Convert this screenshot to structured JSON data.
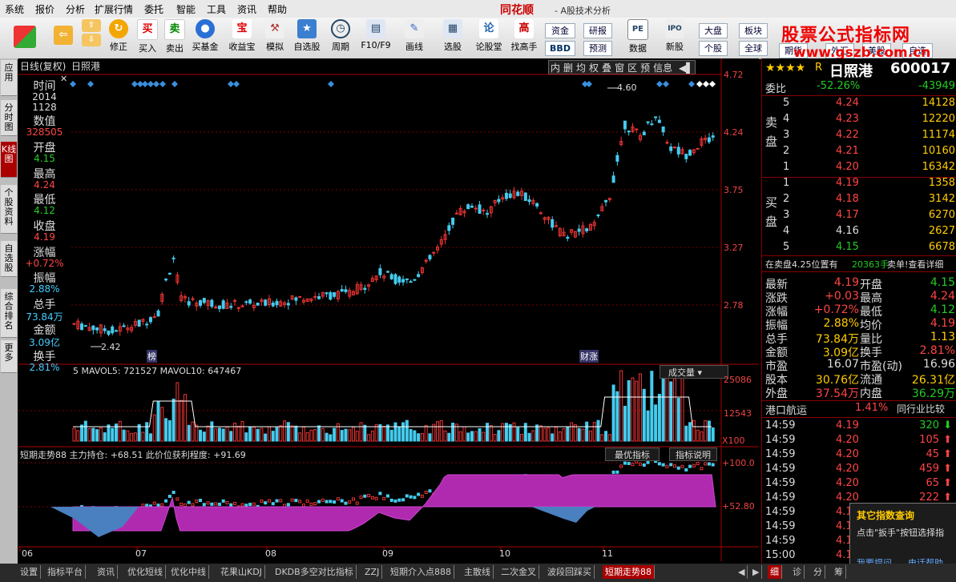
{
  "menu": {
    "items": [
      "系统",
      "报价",
      "分析",
      "扩展行情",
      "委托",
      "智能",
      "工具",
      "资讯",
      "帮助"
    ],
    "brand": "同花顺",
    "brand_sub": "- A股技术分析"
  },
  "watermark": {
    "line1": "股票公式指标网",
    "line2": "www.gszb.com.cn"
  },
  "toolbar": {
    "buttons": [
      "修正",
      "买入",
      "卖出",
      "买基金",
      "收益宝",
      "模拟",
      "自选股",
      "周期",
      "F10/F9",
      "画线",
      "选股",
      "论股堂",
      "找高手",
      "数据",
      "新股"
    ],
    "small_buttons": [
      "资金",
      "研报",
      "大盘",
      "板块",
      "BBD",
      "预测",
      "个股",
      "全球",
      "PE",
      "IPO"
    ],
    "edge_labels": [
      "期货",
      "外汇",
      "美股",
      "自选"
    ]
  },
  "left_tabs": [
    "应用",
    "分时图",
    "K线图",
    "个股资料",
    "自选股",
    "综合排名",
    "更多"
  ],
  "chart": {
    "header_left": "日线(复权)",
    "header_stock": "日照港",
    "header_buttons": [
      "内",
      "删",
      "均",
      "权",
      "叠",
      "窗",
      "区",
      "预",
      "信息"
    ],
    "price_axis": [
      "4.72",
      "4.24",
      "3.75",
      "3.27",
      "2.78"
    ],
    "max_label": "4.60",
    "min_label": "2.42",
    "tag1": "榜",
    "tag2": "财涨",
    "vol_header": "5  MAVOL5: 721527  MAVOL10: 647467",
    "vol_label": "成交量",
    "vol_axis": [
      "25086",
      "12543",
      "X100"
    ],
    "ind_header": "短期走势88  主力持仓: +68.51  此价位获利程度: +91.69",
    "ind_btn1": "最优指标",
    "ind_btn2": "指标说明",
    "ind_axis": [
      "+100.0",
      "+52.80"
    ],
    "dates": [
      "06",
      "07",
      "08",
      "09",
      "10",
      "11"
    ]
  },
  "infobox": {
    "time_label": "时间",
    "year": "2014",
    "date": "1128",
    "value_label": "数值",
    "value": "328505",
    "open_label": "开盘",
    "open": "4.15",
    "high_label": "最高",
    "high": "4.24",
    "low_label": "最低",
    "low": "4.12",
    "close_label": "收盘",
    "close": "4.19",
    "change_label": "涨幅",
    "change": "+0.72%",
    "amp_label": "振幅",
    "amp": "2.88%",
    "vol_label": "总手",
    "vol": "73.84万",
    "amount_label": "金额",
    "amount": "3.09亿",
    "turnover_label": "换手",
    "turnover": "2.81%"
  },
  "quote": {
    "stars": "★★★★",
    "r": "R",
    "name": "日照港",
    "code": "600017",
    "wb_label": "委比",
    "wb": "-52.26%",
    "wc": "-43949",
    "sell_label": "卖盘",
    "buy_label": "买盘",
    "sell": [
      {
        "n": "5",
        "p": "4.24",
        "v": "14128"
      },
      {
        "n": "4",
        "p": "4.23",
        "v": "12220"
      },
      {
        "n": "3",
        "p": "4.22",
        "v": "11174"
      },
      {
        "n": "2",
        "p": "4.21",
        "v": "10160"
      },
      {
        "n": "1",
        "p": "4.20",
        "v": "16342"
      }
    ],
    "buy": [
      {
        "n": "1",
        "p": "4.19",
        "v": "1358"
      },
      {
        "n": "2",
        "p": "4.18",
        "v": "3142"
      },
      {
        "n": "3",
        "p": "4.17",
        "v": "6270"
      },
      {
        "n": "4",
        "p": "4.16",
        "v": "2627"
      },
      {
        "n": "5",
        "p": "4.15",
        "v": "6678"
      }
    ],
    "notice": "在卖盘4.25位置有",
    "notice_vol": "20363手",
    "notice_end": "卖单!查看详细",
    "stats": [
      {
        "l1": "最新",
        "v1": "4.19",
        "l2": "开盘",
        "v2": "4.15"
      },
      {
        "l1": "涨跌",
        "v1": "+0.03",
        "l2": "最高",
        "v2": "4.24"
      },
      {
        "l1": "涨幅",
        "v1": "+0.72%",
        "l2": "最低",
        "v2": "4.12"
      },
      {
        "l1": "振幅",
        "v1": "2.88%",
        "l2": "均价",
        "v2": "4.19"
      },
      {
        "l1": "总手",
        "v1": "73.84万",
        "l2": "量比",
        "v2": "1.13"
      },
      {
        "l1": "金额",
        "v1": "3.09亿",
        "l2": "换手",
        "v2": "2.81%"
      },
      {
        "l1": "市盈",
        "v1": "16.07",
        "l2": "市盈(动)",
        "v2": "16.96"
      },
      {
        "l1": "股本",
        "v1": "30.76亿",
        "l2": "流通",
        "v2": "26.31亿"
      },
      {
        "l1": "外盘",
        "v1": "37.54万",
        "l2": "内盘",
        "v2": "36.29万"
      }
    ],
    "sector": "港口航运",
    "sector_pct": "1.41%",
    "sector_btn": "同行业比较",
    "ticks": [
      {
        "t": "14:59",
        "p": "4.19",
        "v": "320"
      },
      {
        "t": "14:59",
        "p": "4.20",
        "v": "105"
      },
      {
        "t": "14:59",
        "p": "4.20",
        "v": "45"
      },
      {
        "t": "14:59",
        "p": "4.20",
        "v": "459"
      },
      {
        "t": "14:59",
        "p": "4.20",
        "v": "65"
      },
      {
        "t": "14:59",
        "p": "4.20",
        "v": "222"
      },
      {
        "t": "14:59",
        "p": "4.1"
      },
      {
        "t": "14:59",
        "p": "4.1"
      },
      {
        "t": "14:59",
        "p": "4.1"
      },
      {
        "t": "15:00",
        "p": "4.1"
      }
    ]
  },
  "popup": {
    "title": "其它指数查询",
    "body": "点击\"扳手\"按钮选择指",
    "link1": "我要提问",
    "link2": "电话帮助"
  },
  "bottom_tabs": [
    "设置",
    "指标平台",
    "资讯",
    "优化短线",
    "优化中线",
    "花果山KDJ",
    "DKDB多空对比指标",
    "ZZJ",
    "短期介入点888",
    "主散线",
    "二次金叉",
    "波段回踩买",
    "短期走势88"
  ],
  "right_bottom_tabs": [
    "细",
    "诊",
    "分",
    "筹"
  ]
}
